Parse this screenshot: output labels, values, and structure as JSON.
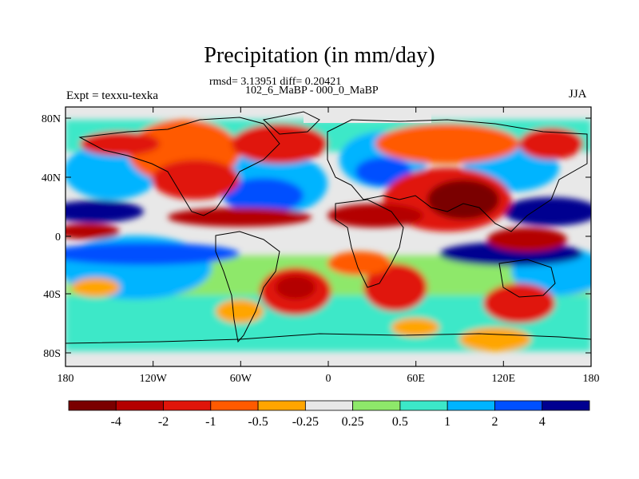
{
  "title": "Precipitation (in mm/day)",
  "subtitle_line1": "rmsd= 3.13951 diff= 0.20421",
  "subtitle_line2": "102_6_MaBP - 000_0_MaBP",
  "left_string": "Expt = texxu-texka",
  "right_string": "JJA",
  "lat_labels": [
    "80N",
    "40N",
    "0",
    "40S",
    "80S"
  ],
  "lon_labels": [
    "180",
    "120W",
    "60W",
    "0",
    "60E",
    "120E",
    "180"
  ],
  "colorbar": {
    "labels": [
      "-4",
      "-2",
      "-1",
      "-0.5",
      "-0.25",
      "0.25",
      "0.5",
      "1",
      "2",
      "4"
    ],
    "colors": [
      "#7a0000",
      "#b40000",
      "#e0150a",
      "#ff5a00",
      "#ffa500",
      "#e8e8e8",
      "#8ee86a",
      "#3ce8c8",
      "#00b4ff",
      "#0050ff",
      "#000090"
    ]
  },
  "colors": {
    "neutral": "#e8e8e8",
    "coastline": "#000000"
  }
}
